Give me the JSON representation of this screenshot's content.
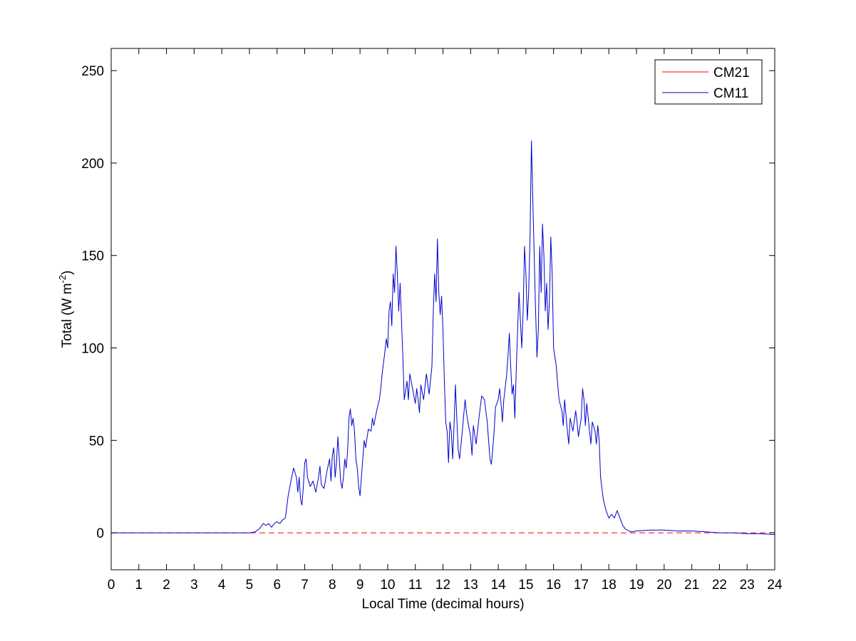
{
  "chart_data": {
    "type": "line",
    "xlabel": "Local Time (decimal hours)",
    "ylabel_main": "Total (W m",
    "ylabel_sup": "-2",
    "ylabel_tail": ")",
    "xlim": [
      0,
      24
    ],
    "ylim": [
      -20,
      262
    ],
    "xticks": [
      0,
      1,
      2,
      3,
      4,
      5,
      6,
      7,
      8,
      9,
      10,
      11,
      12,
      13,
      14,
      15,
      16,
      17,
      18,
      19,
      20,
      21,
      22,
      23,
      24
    ],
    "yticks": [
      0,
      50,
      100,
      150,
      200,
      250
    ],
    "grid": false,
    "legend_position": "top-right",
    "colors": {
      "CM21": "#ff0000",
      "CM11": "#0000cc",
      "axes": "#000000"
    },
    "series": [
      {
        "name": "CM21",
        "style": "dashed",
        "points": [
          [
            0,
            0
          ],
          [
            24,
            0
          ]
        ]
      },
      {
        "name": "CM11",
        "style": "solid",
        "points": [
          [
            0,
            0
          ],
          [
            5.0,
            0
          ],
          [
            5.2,
            0.5
          ],
          [
            5.35,
            2
          ],
          [
            5.5,
            5
          ],
          [
            5.6,
            4
          ],
          [
            5.7,
            5
          ],
          [
            5.8,
            3
          ],
          [
            5.9,
            5
          ],
          [
            6.0,
            6
          ],
          [
            6.1,
            5
          ],
          [
            6.2,
            7
          ],
          [
            6.3,
            8
          ],
          [
            6.4,
            20
          ],
          [
            6.5,
            28
          ],
          [
            6.6,
            35
          ],
          [
            6.7,
            30
          ],
          [
            6.75,
            22
          ],
          [
            6.8,
            30
          ],
          [
            6.85,
            18
          ],
          [
            6.9,
            15
          ],
          [
            6.95,
            25
          ],
          [
            7.0,
            38
          ],
          [
            7.05,
            40
          ],
          [
            7.1,
            30
          ],
          [
            7.2,
            25
          ],
          [
            7.3,
            28
          ],
          [
            7.4,
            22
          ],
          [
            7.5,
            30
          ],
          [
            7.55,
            36
          ],
          [
            7.6,
            26
          ],
          [
            7.7,
            24
          ],
          [
            7.8,
            33
          ],
          [
            7.9,
            40
          ],
          [
            7.95,
            28
          ],
          [
            8.0,
            42
          ],
          [
            8.05,
            46
          ],
          [
            8.1,
            30
          ],
          [
            8.15,
            38
          ],
          [
            8.2,
            52
          ],
          [
            8.25,
            40
          ],
          [
            8.3,
            28
          ],
          [
            8.35,
            24
          ],
          [
            8.4,
            30
          ],
          [
            8.45,
            40
          ],
          [
            8.5,
            35
          ],
          [
            8.55,
            44
          ],
          [
            8.6,
            62
          ],
          [
            8.65,
            67
          ],
          [
            8.7,
            58
          ],
          [
            8.75,
            62
          ],
          [
            8.8,
            55
          ],
          [
            8.85,
            40
          ],
          [
            8.9,
            35
          ],
          [
            8.95,
            25
          ],
          [
            9.0,
            20
          ],
          [
            9.05,
            30
          ],
          [
            9.1,
            40
          ],
          [
            9.15,
            50
          ],
          [
            9.2,
            46
          ],
          [
            9.3,
            56
          ],
          [
            9.4,
            55
          ],
          [
            9.45,
            62
          ],
          [
            9.5,
            58
          ],
          [
            9.6,
            66
          ],
          [
            9.7,
            72
          ],
          [
            9.75,
            78
          ],
          [
            9.8,
            86
          ],
          [
            9.9,
            98
          ],
          [
            9.95,
            105
          ],
          [
            10.0,
            100
          ],
          [
            10.05,
            120
          ],
          [
            10.1,
            125
          ],
          [
            10.15,
            112
          ],
          [
            10.2,
            140
          ],
          [
            10.25,
            130
          ],
          [
            10.3,
            155
          ],
          [
            10.35,
            140
          ],
          [
            10.4,
            120
          ],
          [
            10.45,
            135
          ],
          [
            10.5,
            115
          ],
          [
            10.55,
            95
          ],
          [
            10.6,
            72
          ],
          [
            10.7,
            82
          ],
          [
            10.75,
            72
          ],
          [
            10.8,
            86
          ],
          [
            10.9,
            78
          ],
          [
            11.0,
            70
          ],
          [
            11.05,
            78
          ],
          [
            11.1,
            72
          ],
          [
            11.15,
            65
          ],
          [
            11.2,
            80
          ],
          [
            11.3,
            72
          ],
          [
            11.4,
            86
          ],
          [
            11.5,
            75
          ],
          [
            11.6,
            90
          ],
          [
            11.65,
            120
          ],
          [
            11.7,
            140
          ],
          [
            11.75,
            125
          ],
          [
            11.8,
            159
          ],
          [
            11.85,
            130
          ],
          [
            11.9,
            118
          ],
          [
            11.95,
            128
          ],
          [
            12.0,
            110
          ],
          [
            12.05,
            82
          ],
          [
            12.1,
            60
          ],
          [
            12.15,
            55
          ],
          [
            12.2,
            38
          ],
          [
            12.25,
            60
          ],
          [
            12.3,
            55
          ],
          [
            12.35,
            40
          ],
          [
            12.4,
            58
          ],
          [
            12.45,
            80
          ],
          [
            12.5,
            62
          ],
          [
            12.55,
            45
          ],
          [
            12.6,
            40
          ],
          [
            12.7,
            55
          ],
          [
            12.8,
            72
          ],
          [
            12.85,
            65
          ],
          [
            12.9,
            60
          ],
          [
            13.0,
            52
          ],
          [
            13.05,
            42
          ],
          [
            13.1,
            58
          ],
          [
            13.2,
            48
          ],
          [
            13.3,
            62
          ],
          [
            13.4,
            74
          ],
          [
            13.5,
            72
          ],
          [
            13.6,
            60
          ],
          [
            13.7,
            40
          ],
          [
            13.75,
            37
          ],
          [
            13.8,
            45
          ],
          [
            13.85,
            55
          ],
          [
            13.9,
            68
          ],
          [
            14.0,
            72
          ],
          [
            14.05,
            78
          ],
          [
            14.1,
            70
          ],
          [
            14.15,
            60
          ],
          [
            14.2,
            72
          ],
          [
            14.3,
            85
          ],
          [
            14.35,
            95
          ],
          [
            14.4,
            108
          ],
          [
            14.45,
            90
          ],
          [
            14.5,
            75
          ],
          [
            14.55,
            80
          ],
          [
            14.6,
            62
          ],
          [
            14.65,
            88
          ],
          [
            14.7,
            110
          ],
          [
            14.75,
            130
          ],
          [
            14.8,
            115
          ],
          [
            14.85,
            100
          ],
          [
            14.9,
            120
          ],
          [
            14.95,
            155
          ],
          [
            15.0,
            140
          ],
          [
            15.05,
            115
          ],
          [
            15.1,
            130
          ],
          [
            15.15,
            160
          ],
          [
            15.2,
            212
          ],
          [
            15.25,
            180
          ],
          [
            15.3,
            150
          ],
          [
            15.35,
            120
          ],
          [
            15.4,
            95
          ],
          [
            15.45,
            110
          ],
          [
            15.5,
            155
          ],
          [
            15.55,
            130
          ],
          [
            15.6,
            167
          ],
          [
            15.65,
            150
          ],
          [
            15.7,
            120
          ],
          [
            15.75,
            135
          ],
          [
            15.8,
            110
          ],
          [
            15.85,
            125
          ],
          [
            15.9,
            160
          ],
          [
            15.95,
            140
          ],
          [
            16.0,
            100
          ],
          [
            16.05,
            95
          ],
          [
            16.1,
            90
          ],
          [
            16.15,
            80
          ],
          [
            16.2,
            72
          ],
          [
            16.3,
            66
          ],
          [
            16.35,
            58
          ],
          [
            16.4,
            72
          ],
          [
            16.5,
            55
          ],
          [
            16.55,
            48
          ],
          [
            16.6,
            62
          ],
          [
            16.7,
            55
          ],
          [
            16.8,
            66
          ],
          [
            16.85,
            60
          ],
          [
            16.9,
            52
          ],
          [
            17.0,
            62
          ],
          [
            17.05,
            78
          ],
          [
            17.1,
            72
          ],
          [
            17.15,
            58
          ],
          [
            17.2,
            70
          ],
          [
            17.3,
            55
          ],
          [
            17.35,
            48
          ],
          [
            17.4,
            60
          ],
          [
            17.5,
            55
          ],
          [
            17.55,
            48
          ],
          [
            17.6,
            58
          ],
          [
            17.65,
            50
          ],
          [
            17.7,
            30
          ],
          [
            17.8,
            18
          ],
          [
            17.9,
            12
          ],
          [
            18.0,
            8
          ],
          [
            18.1,
            10
          ],
          [
            18.2,
            8
          ],
          [
            18.3,
            12
          ],
          [
            18.4,
            8
          ],
          [
            18.5,
            4
          ],
          [
            18.6,
            2
          ],
          [
            18.8,
            0.5
          ],
          [
            19.0,
            1
          ],
          [
            19.5,
            1.5
          ],
          [
            20.0,
            1.5
          ],
          [
            20.5,
            1
          ],
          [
            21.0,
            1
          ],
          [
            21.5,
            0.5
          ],
          [
            22.0,
            0
          ],
          [
            22.5,
            0
          ],
          [
            23.0,
            -0.5
          ],
          [
            23.5,
            -0.5
          ],
          [
            24.0,
            -1
          ]
        ]
      }
    ]
  }
}
